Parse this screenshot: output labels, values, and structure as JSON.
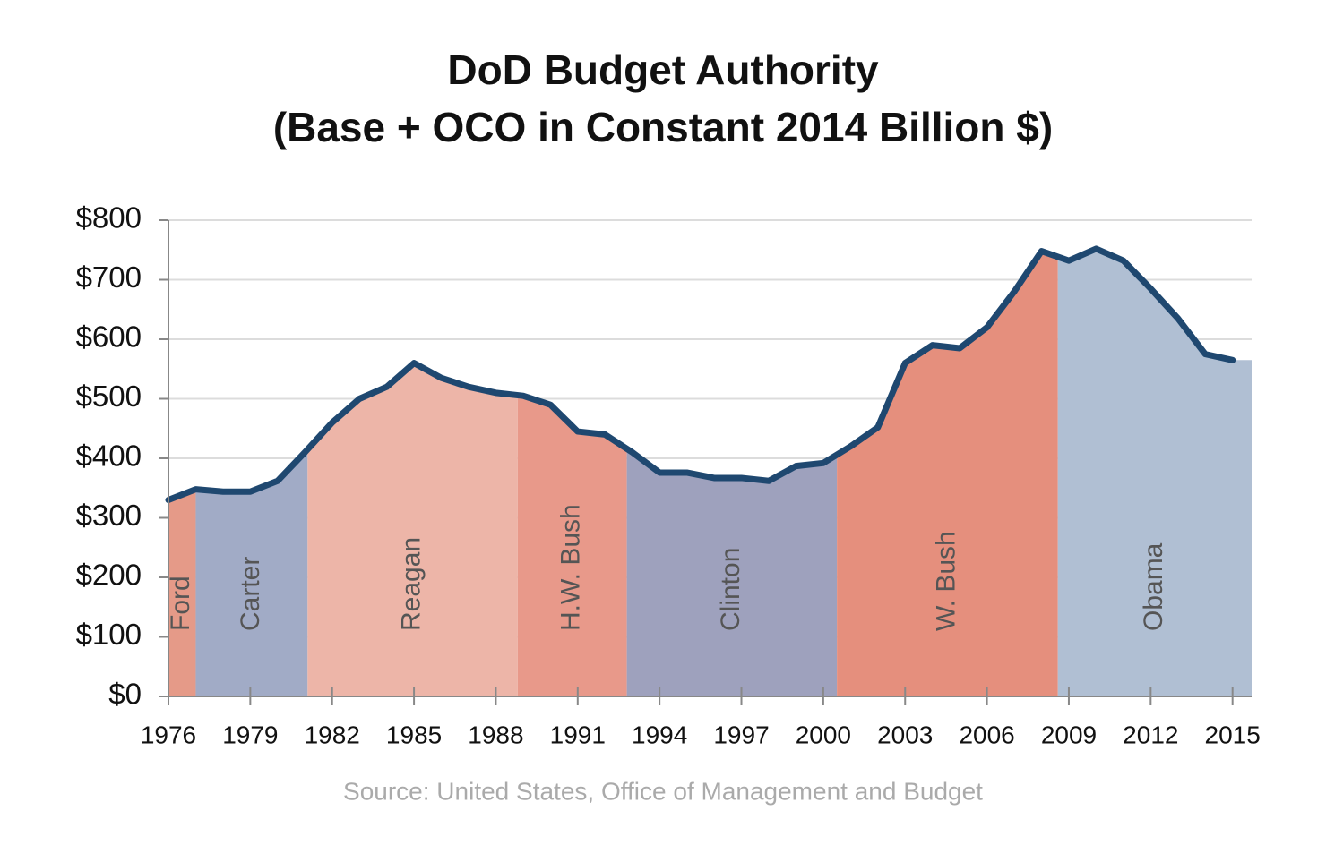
{
  "chart_data": {
    "type": "line",
    "title": "DoD Budget Authority",
    "subtitle": "(Base + OCO in Constant 2014 Billion $)",
    "source": "Source: United States, Office of Management and Budget",
    "x": [
      1976,
      1977,
      1978,
      1979,
      1980,
      1981,
      1982,
      1983,
      1984,
      1985,
      1986,
      1987,
      1988,
      1989,
      1990,
      1991,
      1992,
      1993,
      1994,
      1995,
      1996,
      1997,
      1998,
      1999,
      2000,
      2001,
      2002,
      2003,
      2004,
      2005,
      2006,
      2007,
      2008,
      2009,
      2010,
      2011,
      2012,
      2013,
      2014,
      2015
    ],
    "series": [
      {
        "color": "#1f4870",
        "values": [
          330,
          348,
          344,
          344,
          362,
          410,
          460,
          500,
          520,
          560,
          535,
          520,
          510,
          505,
          490,
          445,
          440,
          410,
          376,
          376,
          367,
          367,
          362,
          387,
          392,
          420,
          452,
          560,
          590,
          585,
          620,
          680,
          748,
          732,
          752,
          732,
          685,
          635,
          575,
          565
        ]
      }
    ],
    "presidents": [
      {
        "name": "Ford",
        "start": 1976,
        "end": 1977,
        "color": "#e59a88"
      },
      {
        "name": "Carter",
        "start": 1977,
        "end": 1981.1,
        "color": "#a1abc6"
      },
      {
        "name": "Reagan",
        "start": 1981.1,
        "end": 1988.8,
        "color": "#edb5a8"
      },
      {
        "name": "H.W. Bush",
        "start": 1988.8,
        "end": 1992.8,
        "color": "#e8998a"
      },
      {
        "name": "Clinton",
        "start": 1992.8,
        "end": 2000.5,
        "color": "#9ea1bd"
      },
      {
        "name": "W. Bush",
        "start": 2000.5,
        "end": 2008.6,
        "color": "#e58f7d"
      },
      {
        "name": "Obama",
        "start": 2008.6,
        "end": 2015.7,
        "color": "#b0bfd3"
      }
    ],
    "xlim": [
      1976,
      2015.7
    ],
    "xticks": [
      1976,
      1979,
      1982,
      1985,
      1988,
      1991,
      1994,
      1997,
      2000,
      2003,
      2006,
      2009,
      2012,
      2015
    ],
    "ylim": [
      0,
      800
    ],
    "yticks": [
      {
        "value": 0,
        "label": "$0"
      },
      {
        "value": 100,
        "label": "$100"
      },
      {
        "value": 200,
        "label": "$200"
      },
      {
        "value": 300,
        "label": "$300"
      },
      {
        "value": 400,
        "label": "$400"
      },
      {
        "value": 500,
        "label": "$500"
      },
      {
        "value": 600,
        "label": "$600"
      },
      {
        "value": 700,
        "label": "$700"
      },
      {
        "value": 800,
        "label": "$800"
      }
    ],
    "grid": true
  }
}
